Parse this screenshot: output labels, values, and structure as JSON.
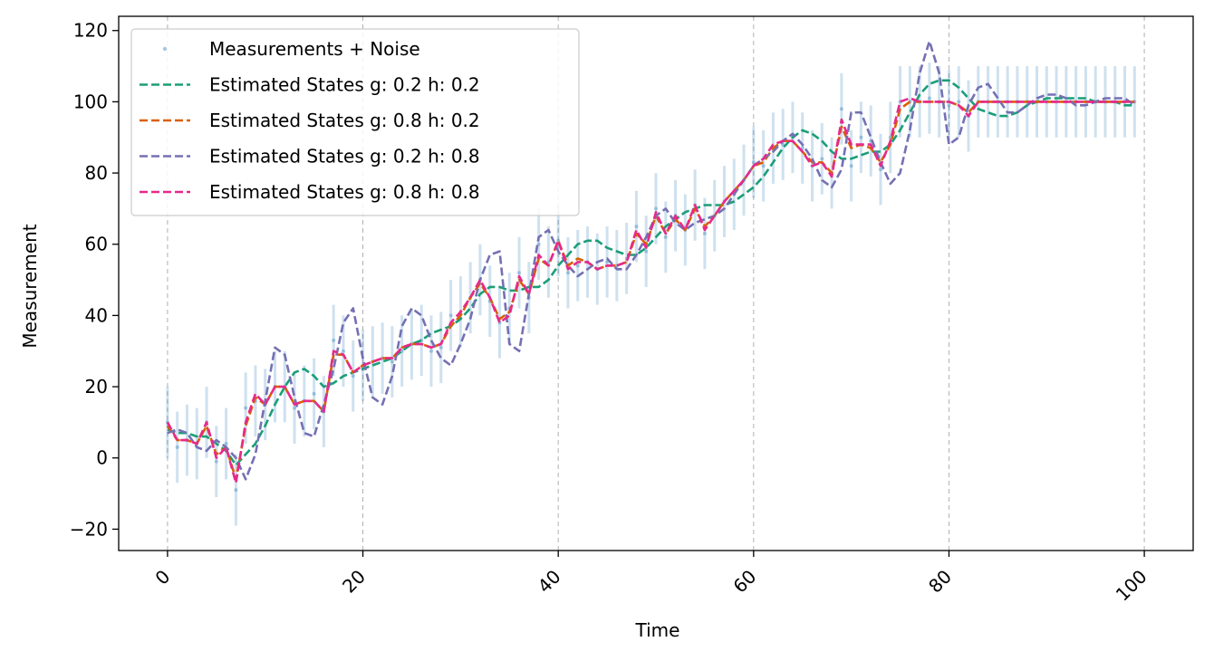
{
  "chart_data": {
    "type": "line",
    "title": "",
    "xlabel": "Time",
    "ylabel": "Measurement",
    "xlim": [
      -5,
      105
    ],
    "ylim": [
      -26,
      124
    ],
    "x_ticks": [
      0,
      20,
      40,
      60,
      80,
      100
    ],
    "y_ticks": [
      -20,
      0,
      20,
      40,
      60,
      80,
      100,
      120
    ],
    "x_tick_labels": [
      "0",
      "20",
      "40",
      "60",
      "80",
      "100"
    ],
    "y_tick_labels": [
      "−20",
      "0",
      "20",
      "40",
      "60",
      "80",
      "100",
      "120"
    ],
    "x_tick_rotation_deg": 45,
    "grid": "x-only dashed",
    "legend_position": "upper-left",
    "measurements": {
      "name": "Measurements + Noise",
      "color": "#1f77b4",
      "error_bar_halfwidth": 10,
      "x": [
        0,
        1,
        2,
        3,
        4,
        5,
        6,
        7,
        8,
        9,
        10,
        11,
        12,
        13,
        14,
        15,
        16,
        17,
        18,
        19,
        20,
        21,
        22,
        23,
        24,
        25,
        26,
        27,
        28,
        29,
        30,
        31,
        32,
        33,
        34,
        35,
        36,
        37,
        38,
        39,
        40,
        41,
        42,
        43,
        44,
        45,
        46,
        47,
        48,
        49,
        50,
        51,
        52,
        53,
        54,
        55,
        56,
        57,
        58,
        59,
        60,
        61,
        62,
        63,
        64,
        65,
        66,
        67,
        68,
        69,
        70,
        71,
        72,
        73,
        74,
        75,
        76,
        77,
        78,
        79,
        80,
        81,
        82,
        83,
        84,
        85,
        86,
        87,
        88,
        89,
        90,
        91,
        92,
        93,
        94,
        95,
        96,
        97,
        98,
        99
      ],
      "y": [
        10,
        3,
        5,
        4,
        10,
        -1,
        4,
        -9,
        14,
        16,
        15,
        20,
        20,
        14,
        16,
        18,
        13,
        33,
        30,
        23,
        26,
        27,
        28,
        27,
        30,
        32,
        33,
        30,
        31,
        40,
        41,
        45,
        50,
        44,
        38,
        42,
        52,
        45,
        60,
        55,
        61,
        52,
        54,
        55,
        53,
        55,
        54,
        56,
        65,
        58,
        70,
        62,
        68,
        64,
        71,
        63,
        68,
        72,
        74,
        78,
        83,
        82,
        87,
        88,
        90,
        87,
        82,
        84,
        80,
        98,
        82,
        90,
        89,
        81,
        90,
        100,
        100,
        100,
        101,
        100,
        99,
        100,
        96,
        100,
        100,
        100,
        100,
        100,
        100,
        100,
        100,
        100,
        100,
        100,
        100,
        100,
        100,
        100,
        100,
        100
      ]
    },
    "series": [
      {
        "name": "Estimated States g: 0.2 h: 0.2",
        "color": "#1b9e77",
        "x": [
          0,
          1,
          2,
          3,
          4,
          5,
          6,
          7,
          8,
          9,
          10,
          11,
          12,
          13,
          14,
          15,
          16,
          17,
          18,
          19,
          20,
          21,
          22,
          23,
          24,
          25,
          26,
          27,
          28,
          29,
          30,
          31,
          32,
          33,
          34,
          35,
          36,
          37,
          38,
          39,
          40,
          41,
          42,
          43,
          44,
          45,
          46,
          47,
          48,
          49,
          50,
          51,
          52,
          53,
          54,
          55,
          56,
          57,
          58,
          59,
          60,
          61,
          62,
          63,
          64,
          65,
          66,
          67,
          68,
          69,
          70,
          71,
          72,
          73,
          74,
          75,
          76,
          77,
          78,
          79,
          80,
          81,
          82,
          83,
          84,
          85,
          86,
          87,
          88,
          89,
          90,
          91,
          92,
          93,
          94,
          95,
          96,
          97,
          98,
          99
        ],
        "y": [
          8,
          7,
          7,
          6,
          6,
          4,
          2,
          -2,
          1,
          4,
          9,
          15,
          20,
          24,
          25,
          23,
          20,
          21,
          23,
          24,
          25,
          26,
          27,
          28,
          30,
          32,
          33,
          35,
          36,
          37,
          39,
          42,
          46,
          48,
          48,
          47,
          47,
          48,
          48,
          50,
          54,
          57,
          60,
          61,
          61,
          59,
          58,
          57,
          57,
          59,
          62,
          65,
          67,
          69,
          70,
          71,
          71,
          71,
          72,
          74,
          76,
          79,
          83,
          87,
          90,
          92,
          91,
          89,
          86,
          84,
          84,
          85,
          86,
          86,
          88,
          92,
          97,
          102,
          105,
          106,
          106,
          104,
          101,
          98,
          97,
          96,
          96,
          97,
          99,
          100,
          101,
          101,
          101,
          101,
          101,
          100,
          100,
          100,
          99,
          99
        ]
      },
      {
        "name": "Estimated States g: 0.8 h: 0.2",
        "color": "#d95f02",
        "x": [
          0,
          1,
          2,
          3,
          4,
          5,
          6,
          7,
          8,
          9,
          10,
          11,
          12,
          13,
          14,
          15,
          16,
          17,
          18,
          19,
          20,
          21,
          22,
          23,
          24,
          25,
          26,
          27,
          28,
          29,
          30,
          31,
          32,
          33,
          34,
          35,
          36,
          37,
          38,
          39,
          40,
          41,
          42,
          43,
          44,
          45,
          46,
          47,
          48,
          49,
          50,
          51,
          52,
          53,
          54,
          55,
          56,
          57,
          58,
          59,
          60,
          61,
          62,
          63,
          64,
          65,
          66,
          67,
          68,
          69,
          70,
          71,
          72,
          73,
          74,
          75,
          76,
          77,
          78,
          79,
          80,
          81,
          82,
          83,
          84,
          85,
          86,
          87,
          88,
          89,
          90,
          91,
          92,
          93,
          94,
          95,
          96,
          97,
          98,
          99
        ],
        "y": [
          9,
          5,
          5,
          4,
          9,
          1,
          3,
          -6,
          9,
          17,
          15,
          20,
          20,
          15,
          16,
          16,
          13,
          29,
          29,
          24,
          26,
          27,
          28,
          28,
          31,
          32,
          32,
          31,
          32,
          37,
          40,
          45,
          49,
          45,
          39,
          41,
          50,
          46,
          56,
          54,
          61,
          54,
          56,
          55,
          53,
          54,
          54,
          55,
          63,
          60,
          68,
          63,
          67,
          64,
          70,
          65,
          68,
          72,
          75,
          78,
          82,
          83,
          87,
          89,
          89,
          86,
          83,
          83,
          80,
          93,
          87,
          88,
          87,
          83,
          88,
          98,
          100,
          100,
          100,
          100,
          100,
          99,
          97,
          100,
          100,
          100,
          100,
          100,
          100,
          100,
          100,
          100,
          100,
          100,
          100,
          100,
          100,
          100,
          100,
          100
        ]
      },
      {
        "name": "Estimated States g: 0.2 h: 0.8",
        "color": "#7570b3",
        "x": [
          0,
          1,
          2,
          3,
          4,
          5,
          6,
          7,
          8,
          9,
          10,
          11,
          12,
          13,
          14,
          15,
          16,
          17,
          18,
          19,
          20,
          21,
          22,
          23,
          24,
          25,
          26,
          27,
          28,
          29,
          30,
          31,
          32,
          33,
          34,
          35,
          36,
          37,
          38,
          39,
          40,
          41,
          42,
          43,
          44,
          45,
          46,
          47,
          48,
          49,
          50,
          51,
          52,
          53,
          54,
          55,
          56,
          57,
          58,
          59,
          60,
          61,
          62,
          63,
          64,
          65,
          66,
          67,
          68,
          69,
          70,
          71,
          72,
          73,
          74,
          75,
          76,
          77,
          78,
          79,
          80,
          81,
          82,
          83,
          84,
          85,
          86,
          87,
          88,
          89,
          90,
          91,
          92,
          93,
          94,
          95,
          96,
          97,
          98,
          99
        ],
        "y": [
          7,
          8,
          7,
          3,
          2,
          5,
          3,
          0,
          -6,
          1,
          16,
          31,
          29,
          17,
          7,
          6,
          15,
          25,
          38,
          42,
          28,
          17,
          15,
          23,
          37,
          42,
          40,
          33,
          28,
          26,
          32,
          39,
          50,
          57,
          58,
          32,
          30,
          46,
          62,
          64,
          58,
          54,
          51,
          53,
          55,
          56,
          53,
          53,
          57,
          62,
          68,
          70,
          66,
          64,
          66,
          67,
          68,
          70,
          74,
          78,
          82,
          84,
          86,
          89,
          91,
          88,
          84,
          78,
          76,
          81,
          97,
          97,
          90,
          83,
          77,
          80,
          92,
          108,
          117,
          108,
          88,
          90,
          99,
          104,
          105,
          101,
          97,
          97,
          99,
          101,
          102,
          102,
          101,
          99,
          99,
          100,
          101,
          101,
          101,
          99
        ]
      },
      {
        "name": "Estimated States g: 0.8 h: 0.8",
        "color": "#e7298a",
        "x": [
          0,
          1,
          2,
          3,
          4,
          5,
          6,
          7,
          8,
          9,
          10,
          11,
          12,
          13,
          14,
          15,
          16,
          17,
          18,
          19,
          20,
          21,
          22,
          23,
          24,
          25,
          26,
          27,
          28,
          29,
          30,
          31,
          32,
          33,
          34,
          35,
          36,
          37,
          38,
          39,
          40,
          41,
          42,
          43,
          44,
          45,
          46,
          47,
          48,
          49,
          50,
          51,
          52,
          53,
          54,
          55,
          56,
          57,
          58,
          59,
          60,
          61,
          62,
          63,
          64,
          65,
          66,
          67,
          68,
          69,
          70,
          71,
          72,
          73,
          74,
          75,
          76,
          77,
          78,
          79,
          80,
          81,
          82,
          83,
          84,
          85,
          86,
          87,
          88,
          89,
          90,
          91,
          92,
          93,
          94,
          95,
          96,
          97,
          98,
          99
        ],
        "y": [
          10,
          5,
          5,
          4,
          10,
          0,
          3,
          -7,
          10,
          18,
          15,
          20,
          20,
          15,
          16,
          16,
          13,
          30,
          29,
          24,
          26,
          27,
          28,
          28,
          31,
          32,
          32,
          31,
          32,
          38,
          41,
          45,
          50,
          45,
          38,
          40,
          51,
          46,
          57,
          54,
          61,
          53,
          55,
          55,
          53,
          54,
          54,
          55,
          64,
          59,
          69,
          63,
          68,
          64,
          71,
          64,
          68,
          72,
          75,
          78,
          82,
          84,
          88,
          89,
          89,
          86,
          82,
          83,
          79,
          95,
          88,
          88,
          88,
          82,
          89,
          100,
          101,
          100,
          100,
          100,
          100,
          99,
          96,
          100,
          100,
          100,
          100,
          100,
          100,
          100,
          100,
          100,
          100,
          100,
          100,
          100,
          100,
          100,
          100,
          100
        ]
      }
    ]
  }
}
